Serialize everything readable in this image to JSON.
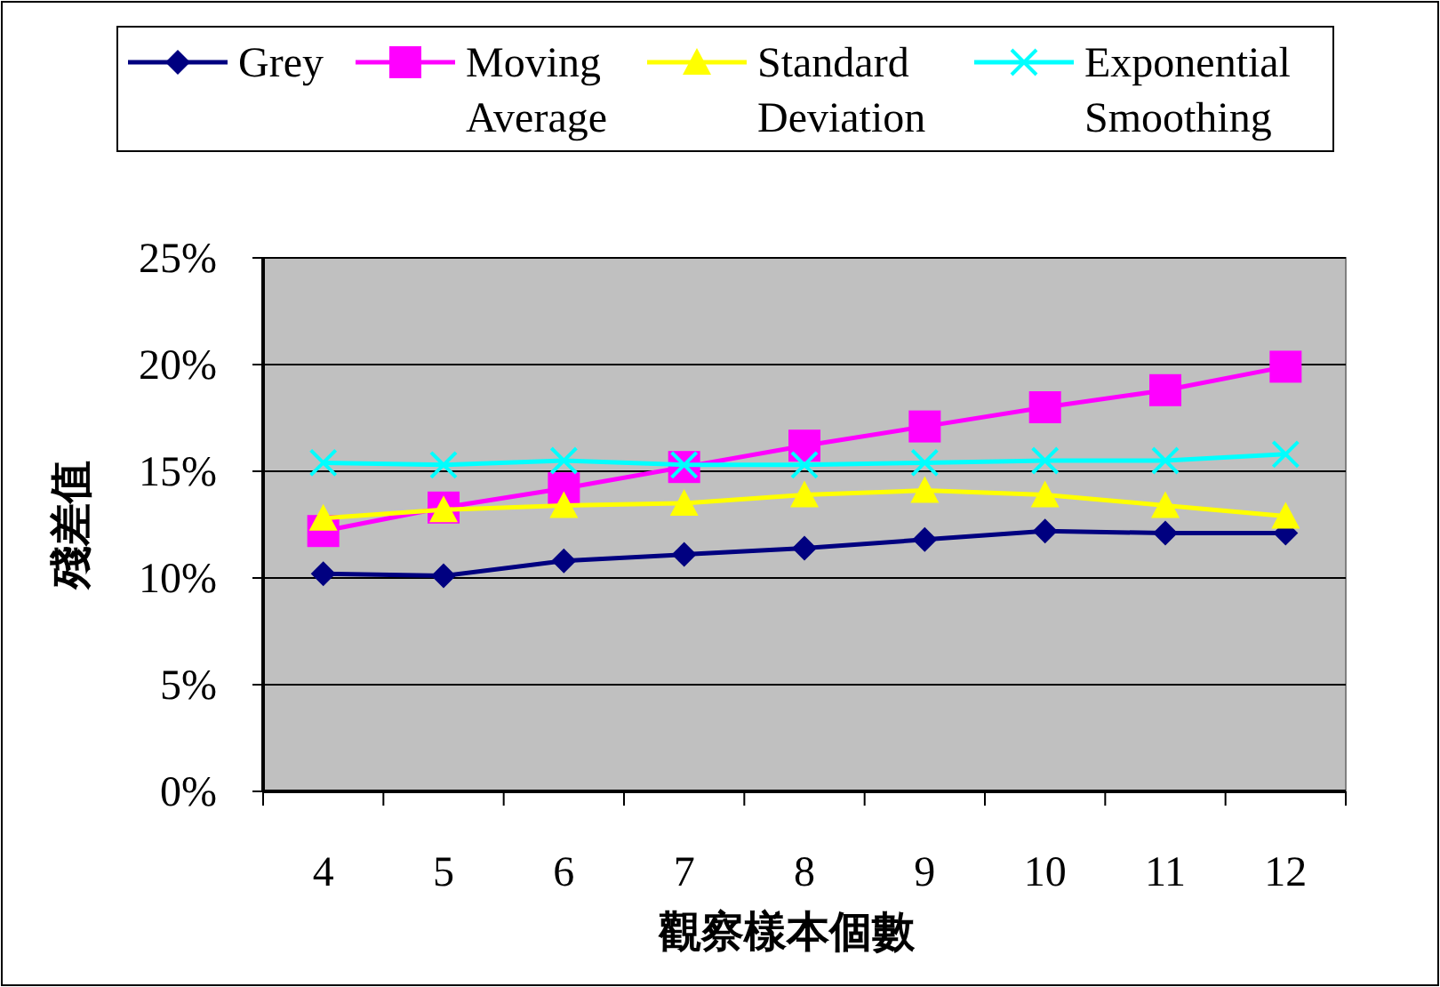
{
  "chart_data": {
    "type": "line",
    "xlabel": "觀察樣本個數",
    "ylabel": "殘差值",
    "categories": [
      "4",
      "5",
      "6",
      "7",
      "8",
      "9",
      "10",
      "11",
      "12"
    ],
    "series": [
      {
        "name": "Grey",
        "color": "#000080",
        "marker": "diamond",
        "values": [
          10.2,
          10.1,
          10.8,
          11.1,
          11.4,
          11.8,
          12.2,
          12.1,
          12.1
        ]
      },
      {
        "name": "Moving Average",
        "color": "#ff00ff",
        "marker": "square",
        "values": [
          12.2,
          13.3,
          14.2,
          15.2,
          16.2,
          17.1,
          18.0,
          18.8,
          19.9
        ]
      },
      {
        "name": "Standard Deviation",
        "color": "#ffff00",
        "marker": "triangle",
        "values": [
          12.8,
          13.2,
          13.4,
          13.5,
          13.9,
          14.1,
          13.9,
          13.4,
          12.9
        ]
      },
      {
        "name": "Exponential Smoothing",
        "color": "#00ffff",
        "marker": "cross",
        "values": [
          15.4,
          15.3,
          15.5,
          15.3,
          15.3,
          15.4,
          15.5,
          15.5,
          15.8
        ]
      }
    ],
    "ylim": [
      0,
      25
    ],
    "yticks": [
      {
        "value": 0,
        "label": "0%"
      },
      {
        "value": 5,
        "label": "5%"
      },
      {
        "value": 10,
        "label": "10%"
      },
      {
        "value": 15,
        "label": "15%"
      },
      {
        "value": 20,
        "label": "20%"
      },
      {
        "value": 25,
        "label": "25%"
      }
    ],
    "grid": "y",
    "legend": "top",
    "line_style": "solid"
  }
}
